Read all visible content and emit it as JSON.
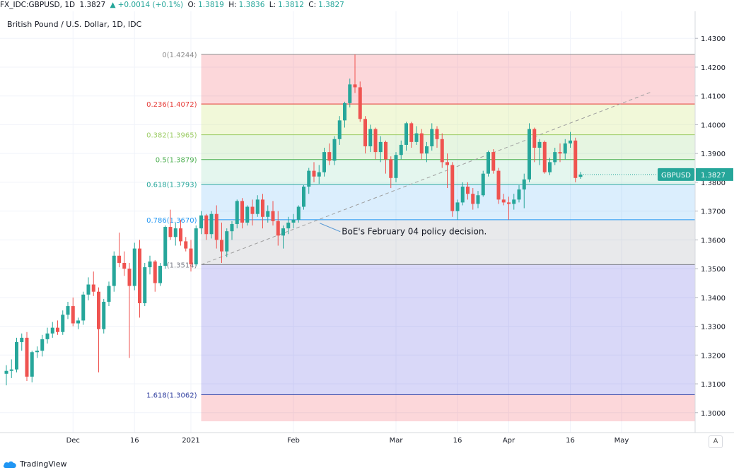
{
  "header": {
    "symbol": "FX_IDC:GBPUSD, 1D",
    "last": "1.3827",
    "change": "+0.0014 (+0.1%)",
    "o_label": "O:",
    "o": "1.3819",
    "h_label": "H:",
    "h": "1.3836",
    "l_label": "L:",
    "l": "1.3812",
    "c_label": "C:",
    "c": "1.3827"
  },
  "legend_title": "British Pound / U.S. Dollar, 1D, IDC",
  "footer": {
    "brand": "TradingView"
  },
  "corner_button": "A",
  "chart_data": {
    "type": "candlestick",
    "title": "British Pound / U.S. Dollar, 1D, IDC",
    "ylim": [
      1.297,
      1.433
    ],
    "y_ticks": [
      "1.3000",
      "1.3100",
      "1.3200",
      "1.3300",
      "1.3400",
      "1.3500",
      "1.3600",
      "1.3700",
      "1.3800",
      "1.3900",
      "1.4000",
      "1.4100",
      "1.4200",
      "1.4300"
    ],
    "x_ticks": [
      {
        "label": "Dec",
        "i": 13
      },
      {
        "label": "16",
        "i": 25
      },
      {
        "label": "2021",
        "i": 36
      },
      {
        "label": "Feb",
        "i": 56
      },
      {
        "label": "Mar",
        "i": 76
      },
      {
        "label": "16",
        "i": 88
      },
      {
        "label": "Apr",
        "i": 98
      },
      {
        "label": "16",
        "i": 110
      },
      {
        "label": "May",
        "i": 120
      }
    ],
    "current_price_label": {
      "name": "GBPUSD",
      "value": "1.3827"
    },
    "fibonacci": {
      "start_i": 38,
      "levels": [
        {
          "label": "0(1.4244)",
          "price": 1.4244,
          "color": "#8c8c8c"
        },
        {
          "label": "0.236(1.4072)",
          "price": 1.4072,
          "color": "#e53935"
        },
        {
          "label": "0.382(1.3965)",
          "price": 1.3965,
          "color": "#9ccc65"
        },
        {
          "label": "0.5(1.3879)",
          "price": 1.3879,
          "color": "#4caf50"
        },
        {
          "label": "0.618(1.3793)",
          "price": 1.3793,
          "color": "#26a69a"
        },
        {
          "label": "0.786(1.3670)",
          "price": 1.367,
          "color": "#2196f3"
        },
        {
          "label": "(1.3514)",
          "price": 1.3514,
          "color": "#787b86"
        },
        {
          "label": "1.618(1.3062)",
          "price": 1.3062,
          "color": "#303f9f"
        }
      ],
      "zones": [
        {
          "from": 1.4244,
          "to": 1.4072,
          "color": "rgba(242,54,69,0.20)"
        },
        {
          "from": 1.4072,
          "to": 1.3965,
          "color": "rgba(205,230,120,0.28)"
        },
        {
          "from": 1.3965,
          "to": 1.3879,
          "color": "rgba(140,210,120,0.22)"
        },
        {
          "from": 1.3879,
          "to": 1.3793,
          "color": "rgba(120,210,170,0.20)"
        },
        {
          "from": 1.3793,
          "to": 1.367,
          "color": "rgba(33,150,243,0.16)"
        },
        {
          "from": 1.367,
          "to": 1.3514,
          "color": "rgba(120,123,134,0.17)"
        },
        {
          "from": 1.3514,
          "to": 1.3062,
          "color": "rgba(81,79,222,0.22)"
        },
        {
          "from": 1.3062,
          "to": 1.297,
          "color": "rgba(242,54,69,0.20)"
        }
      ]
    },
    "trendline": {
      "from": [
        38,
        1.3514
      ],
      "to": [
        126,
        1.4115
      ]
    },
    "annotation": {
      "text": "BoE's February 04 policy decision.",
      "point": [
        61,
        1.3658
      ]
    },
    "candles": [
      [
        1.3135,
        1.3165,
        1.3095,
        1.3145
      ],
      [
        1.3145,
        1.3185,
        1.312,
        1.315
      ],
      [
        1.315,
        1.326,
        1.314,
        1.3245
      ],
      [
        1.3245,
        1.3275,
        1.3215,
        1.326
      ],
      [
        1.326,
        1.328,
        1.311,
        1.3125
      ],
      [
        1.3125,
        1.3215,
        1.3105,
        1.321
      ],
      [
        1.321,
        1.323,
        1.319,
        1.3215
      ],
      [
        1.3215,
        1.327,
        1.3195,
        1.3255
      ],
      [
        1.3255,
        1.3295,
        1.324,
        1.3275
      ],
      [
        1.3275,
        1.3315,
        1.326,
        1.3295
      ],
      [
        1.3295,
        1.332,
        1.327,
        1.328
      ],
      [
        1.328,
        1.3355,
        1.327,
        1.334
      ],
      [
        1.334,
        1.3385,
        1.3325,
        1.337
      ],
      [
        1.337,
        1.34,
        1.33,
        1.331
      ],
      [
        1.331,
        1.333,
        1.329,
        1.332
      ],
      [
        1.332,
        1.342,
        1.3305,
        1.341
      ],
      [
        1.341,
        1.347,
        1.339,
        1.3445
      ],
      [
        1.3445,
        1.349,
        1.3405,
        1.342
      ],
      [
        1.342,
        1.3435,
        1.314,
        1.329
      ],
      [
        1.329,
        1.3395,
        1.3275,
        1.3385
      ],
      [
        1.3385,
        1.3455,
        1.337,
        1.344
      ],
      [
        1.344,
        1.356,
        1.342,
        1.3545
      ],
      [
        1.3545,
        1.3625,
        1.3505,
        1.352
      ],
      [
        1.352,
        1.356,
        1.3475,
        1.35
      ],
      [
        1.35,
        1.352,
        1.319,
        1.344
      ],
      [
        1.344,
        1.359,
        1.3425,
        1.357
      ],
      [
        1.357,
        1.36,
        1.333,
        1.338
      ],
      [
        1.338,
        1.352,
        1.337,
        1.3505
      ],
      [
        1.3505,
        1.3545,
        1.348,
        1.3525
      ],
      [
        1.3525,
        1.353,
        1.342,
        1.345
      ],
      [
        1.345,
        1.352,
        1.344,
        1.351
      ],
      [
        1.351,
        1.365,
        1.35,
        1.3645
      ],
      [
        1.3645,
        1.3705,
        1.36,
        1.361
      ],
      [
        1.361,
        1.366,
        1.358,
        1.364
      ],
      [
        1.364,
        1.367,
        1.358,
        1.3595
      ],
      [
        1.3595,
        1.361,
        1.356,
        1.357
      ],
      [
        1.357,
        1.36,
        1.349,
        1.3515
      ],
      [
        1.3515,
        1.365,
        1.351,
        1.364
      ],
      [
        1.364,
        1.37,
        1.362,
        1.3685
      ],
      [
        1.3685,
        1.369,
        1.36,
        1.362
      ],
      [
        1.362,
        1.37,
        1.3605,
        1.369
      ],
      [
        1.369,
        1.372,
        1.357,
        1.36
      ],
      [
        1.36,
        1.366,
        1.352,
        1.356
      ],
      [
        1.356,
        1.364,
        1.354,
        1.363
      ],
      [
        1.363,
        1.3665,
        1.36,
        1.3655
      ],
      [
        1.3655,
        1.374,
        1.364,
        1.3735
      ],
      [
        1.3735,
        1.3745,
        1.364,
        1.366
      ],
      [
        1.366,
        1.372,
        1.365,
        1.3715
      ],
      [
        1.3715,
        1.374,
        1.365,
        1.369
      ],
      [
        1.369,
        1.3755,
        1.368,
        1.374
      ],
      [
        1.374,
        1.376,
        1.364,
        1.368
      ],
      [
        1.368,
        1.372,
        1.366,
        1.37
      ],
      [
        1.37,
        1.3735,
        1.365,
        1.3665
      ],
      [
        1.3665,
        1.37,
        1.358,
        1.3615
      ],
      [
        1.3615,
        1.365,
        1.357,
        1.364
      ],
      [
        1.364,
        1.368,
        1.362,
        1.366
      ],
      [
        1.366,
        1.369,
        1.364,
        1.367
      ],
      [
        1.367,
        1.372,
        1.366,
        1.3715
      ],
      [
        1.3715,
        1.379,
        1.3705,
        1.3785
      ],
      [
        1.3785,
        1.385,
        1.376,
        1.384
      ],
      [
        1.384,
        1.387,
        1.38,
        1.382
      ],
      [
        1.382,
        1.386,
        1.3795,
        1.3835
      ],
      [
        1.3835,
        1.392,
        1.382,
        1.3905
      ],
      [
        1.3905,
        1.3935,
        1.386,
        1.3875
      ],
      [
        1.3875,
        1.396,
        1.386,
        1.395
      ],
      [
        1.395,
        1.403,
        1.393,
        1.4015
      ],
      [
        1.4015,
        1.408,
        1.399,
        1.4075
      ],
      [
        1.4075,
        1.416,
        1.406,
        1.414
      ],
      [
        1.414,
        1.4244,
        1.411,
        1.413
      ],
      [
        1.413,
        1.415,
        1.401,
        1.402
      ],
      [
        1.402,
        1.403,
        1.39,
        1.3925
      ],
      [
        1.3925,
        1.4,
        1.3905,
        1.3985
      ],
      [
        1.3985,
        1.399,
        1.388,
        1.3905
      ],
      [
        1.3905,
        1.396,
        1.387,
        1.394
      ],
      [
        1.394,
        1.3945,
        1.383,
        1.388
      ],
      [
        1.388,
        1.389,
        1.378,
        1.3815
      ],
      [
        1.3815,
        1.3905,
        1.38,
        1.3895
      ],
      [
        1.3895,
        1.3945,
        1.388,
        1.393
      ],
      [
        1.393,
        1.401,
        1.391,
        1.4005
      ],
      [
        1.4005,
        1.401,
        1.392,
        1.394
      ],
      [
        1.394,
        1.3995,
        1.393,
        1.397
      ],
      [
        1.397,
        1.3985,
        1.388,
        1.39
      ],
      [
        1.39,
        1.394,
        1.387,
        1.3925
      ],
      [
        1.3925,
        1.4005,
        1.391,
        1.3985
      ],
      [
        1.3985,
        1.3995,
        1.392,
        1.395
      ],
      [
        1.395,
        1.397,
        1.385,
        1.387
      ],
      [
        1.387,
        1.39,
        1.378,
        1.386
      ],
      [
        1.386,
        1.387,
        1.368,
        1.37
      ],
      [
        1.37,
        1.374,
        1.367,
        1.373
      ],
      [
        1.373,
        1.38,
        1.372,
        1.3785
      ],
      [
        1.3785,
        1.38,
        1.374,
        1.376
      ],
      [
        1.376,
        1.378,
        1.3705,
        1.3725
      ],
      [
        1.3725,
        1.377,
        1.371,
        1.3755
      ],
      [
        1.3755,
        1.384,
        1.375,
        1.383
      ],
      [
        1.383,
        1.391,
        1.382,
        1.3905
      ],
      [
        1.3905,
        1.3915,
        1.383,
        1.384
      ],
      [
        1.384,
        1.385,
        1.3725,
        1.374
      ],
      [
        1.374,
        1.376,
        1.372,
        1.373
      ],
      [
        1.373,
        1.375,
        1.367,
        1.3725
      ],
      [
        1.3725,
        1.376,
        1.3705,
        1.374
      ],
      [
        1.374,
        1.379,
        1.373,
        1.3775
      ],
      [
        1.3775,
        1.383,
        1.371,
        1.381
      ],
      [
        1.381,
        1.4005,
        1.38,
        1.3985
      ],
      [
        1.3985,
        1.399,
        1.387,
        1.392
      ],
      [
        1.392,
        1.395,
        1.386,
        1.394
      ],
      [
        1.394,
        1.3945,
        1.383,
        1.3835
      ],
      [
        1.3835,
        1.3885,
        1.3825,
        1.387
      ],
      [
        1.387,
        1.392,
        1.386,
        1.3905
      ],
      [
        1.3905,
        1.3935,
        1.387,
        1.39
      ],
      [
        1.39,
        1.395,
        1.388,
        1.3935
      ],
      [
        1.3935,
        1.3975,
        1.392,
        1.3945
      ],
      [
        1.3945,
        1.3955,
        1.38,
        1.3815
      ],
      [
        1.3819,
        1.3836,
        1.3812,
        1.3827
      ]
    ]
  }
}
